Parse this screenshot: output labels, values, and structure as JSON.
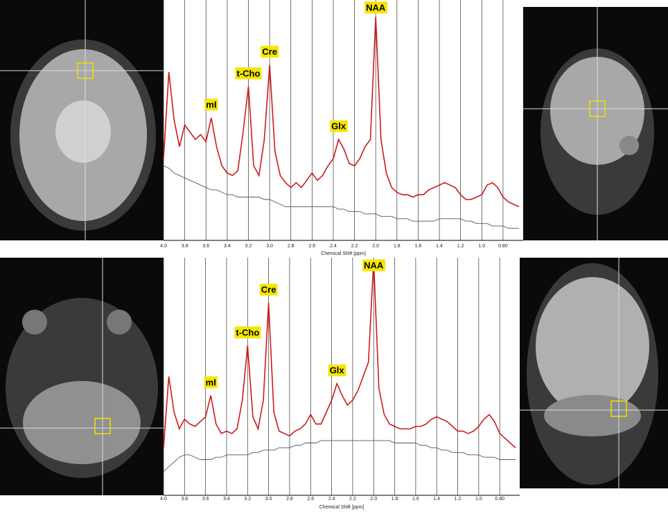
{
  "chart_data": [
    {
      "type": "line",
      "xlabel": "Chemical Shift [ppm]",
      "x": [
        4.0,
        3.95,
        3.9,
        3.85,
        3.8,
        3.75,
        3.7,
        3.65,
        3.6,
        3.55,
        3.5,
        3.45,
        3.4,
        3.35,
        3.3,
        3.25,
        3.2,
        3.15,
        3.1,
        3.05,
        3.0,
        2.95,
        2.9,
        2.85,
        2.8,
        2.75,
        2.7,
        2.65,
        2.6,
        2.55,
        2.5,
        2.45,
        2.4,
        2.35,
        2.3,
        2.25,
        2.2,
        2.15,
        2.1,
        2.05,
        2.0,
        1.95,
        1.9,
        1.85,
        1.8,
        1.75,
        1.7,
        1.65,
        1.6,
        1.55,
        1.5,
        1.45,
        1.4,
        1.35,
        1.3,
        1.25,
        1.2,
        1.15,
        1.1,
        1.05,
        1.0,
        0.95,
        0.9,
        0.85,
        0.8,
        0.75,
        0.7,
        0.65
      ],
      "xlim": [
        4.0,
        0.61
      ],
      "ylim": [
        0,
        100
      ],
      "xticks": [
        {
          "value": 4.0,
          "label": "4.0"
        },
        3.8,
        3.6,
        3.4,
        3.2,
        {
          "value": 3.0,
          "label": "3.0"
        },
        2.8,
        2.6,
        2.4,
        2.2,
        {
          "value": 2.0,
          "label": "2.0"
        },
        1.8,
        1.6,
        1.4,
        1.2,
        {
          "value": 1.0,
          "label": "1.0"
        },
        {
          "value": 0.8,
          "label": "0.80"
        }
      ],
      "grid": true,
      "series": [
        {
          "color": "#555555",
          "values": [
            31,
            30,
            28,
            27,
            26,
            25,
            24,
            23,
            22,
            21,
            21,
            20,
            19,
            19,
            18,
            18,
            18,
            18,
            18,
            17,
            17,
            16,
            15,
            14,
            14,
            14,
            14,
            14,
            14,
            14,
            14,
            14,
            14,
            13,
            13,
            12,
            12,
            12,
            11,
            11,
            11,
            10,
            10,
            10,
            9,
            9,
            9,
            8,
            8,
            8,
            8,
            8,
            9,
            9,
            9,
            9,
            9,
            8,
            8,
            7,
            7,
            7,
            6,
            6,
            6,
            5,
            5,
            5
          ]
        },
        {
          "color": "#d01818",
          "values": [
            34,
            70,
            50,
            39,
            48,
            45,
            42,
            44,
            41,
            51,
            39,
            31,
            28,
            27,
            29,
            45,
            64,
            31,
            27,
            42,
            73,
            37,
            27,
            24,
            22,
            24,
            22,
            25,
            28,
            25,
            27,
            31,
            34,
            42,
            38,
            32,
            31,
            34,
            39,
            42,
            93,
            42,
            28,
            22,
            20,
            19,
            19,
            18,
            19,
            19,
            21,
            22,
            23,
            24,
            23,
            22,
            19,
            17,
            17,
            18,
            19,
            23,
            24,
            22,
            18,
            16,
            15,
            14
          ]
        }
      ],
      "annotations": [
        {
          "text": "mI",
          "x": 3.55
        },
        {
          "text": "t-Cho",
          "x": 3.2
        },
        {
          "text": "Cre",
          "x": 3.0
        },
        {
          "text": "Glx",
          "x": 2.35
        },
        {
          "text": "NAA",
          "x": 2.0
        }
      ]
    },
    {
      "type": "line",
      "xlabel": "Chemical Shift [ppm]",
      "x": [
        4.0,
        3.95,
        3.9,
        3.85,
        3.8,
        3.75,
        3.7,
        3.65,
        3.6,
        3.55,
        3.5,
        3.45,
        3.4,
        3.35,
        3.3,
        3.25,
        3.2,
        3.15,
        3.1,
        3.05,
        3.0,
        2.95,
        2.9,
        2.85,
        2.8,
        2.75,
        2.7,
        2.65,
        2.6,
        2.55,
        2.5,
        2.45,
        2.4,
        2.35,
        2.3,
        2.25,
        2.2,
        2.15,
        2.1,
        2.05,
        2.0,
        1.95,
        1.9,
        1.85,
        1.8,
        1.75,
        1.7,
        1.65,
        1.6,
        1.55,
        1.5,
        1.45,
        1.4,
        1.35,
        1.3,
        1.25,
        1.2,
        1.15,
        1.1,
        1.05,
        1.0,
        0.95,
        0.9,
        0.85,
        0.8,
        0.75,
        0.7,
        0.65
      ],
      "xlim": [
        4.0,
        0.61
      ],
      "ylim": [
        0,
        100
      ],
      "xticks": [
        {
          "value": 4.0,
          "label": "4.0"
        },
        3.8,
        3.6,
        3.4,
        3.2,
        {
          "value": 3.0,
          "label": "3.0"
        },
        2.8,
        2.6,
        2.4,
        2.2,
        {
          "value": 2.0,
          "label": "2.0"
        },
        1.8,
        1.6,
        1.4,
        1.2,
        {
          "value": 1.0,
          "label": "1.0"
        },
        {
          "value": 0.8,
          "label": "0.80"
        }
      ],
      "grid": true,
      "series": [
        {
          "color": "#555555",
          "values": [
            10,
            12,
            14,
            16,
            17,
            17,
            16,
            15,
            15,
            15,
            16,
            16,
            17,
            17,
            17,
            17,
            17,
            18,
            18,
            19,
            19,
            19,
            20,
            20,
            20,
            21,
            21,
            22,
            22,
            22,
            23,
            23,
            23,
            23,
            23,
            23,
            23,
            23,
            23,
            23,
            23,
            23,
            23,
            23,
            22,
            22,
            22,
            22,
            22,
            21,
            21,
            20,
            20,
            19,
            19,
            18,
            18,
            18,
            17,
            17,
            17,
            16,
            16,
            16,
            15,
            15,
            15,
            15
          ]
        },
        {
          "color": "#d01818",
          "values": [
            20,
            50,
            35,
            28,
            32,
            30,
            29,
            31,
            33,
            42,
            30,
            26,
            27,
            26,
            28,
            40,
            63,
            33,
            28,
            40,
            81,
            35,
            27,
            26,
            25,
            27,
            28,
            30,
            34,
            30,
            30,
            35,
            40,
            47,
            42,
            38,
            40,
            44,
            50,
            56,
            99,
            45,
            34,
            30,
            29,
            28,
            28,
            28,
            29,
            29,
            30,
            32,
            33,
            32,
            31,
            29,
            27,
            27,
            26,
            27,
            29,
            32,
            34,
            31,
            26,
            24,
            22,
            20
          ]
        }
      ],
      "annotations": [
        {
          "text": "mI",
          "x": 3.55
        },
        {
          "text": "t-Cho",
          "x": 3.2
        },
        {
          "text": "Cre",
          "x": 3.0
        },
        {
          "text": "Glx",
          "x": 2.35
        },
        {
          "text": "NAA",
          "x": 2.0
        }
      ]
    }
  ]
}
